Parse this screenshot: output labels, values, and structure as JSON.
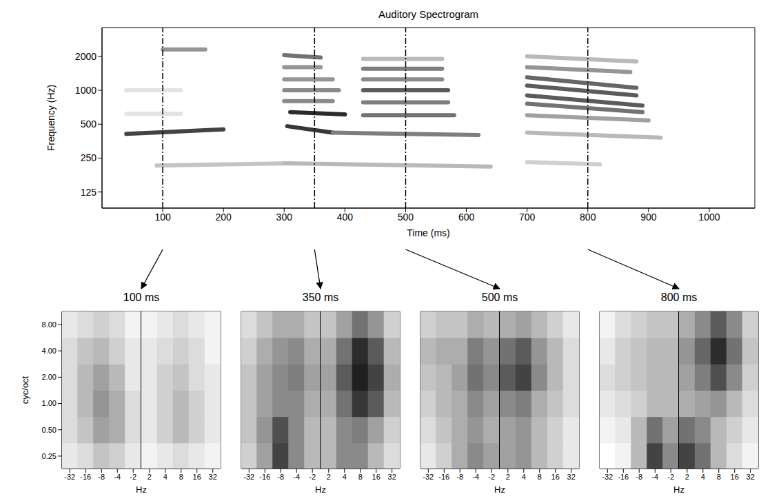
{
  "chart_data": [
    {
      "type": "heatmap",
      "title": "Auditory Spectrogram",
      "xlabel": "Time (ms)",
      "ylabel": "Frequency (Hz)",
      "xlim": [
        0,
        1075
      ],
      "xticks": [
        100,
        200,
        300,
        400,
        500,
        600,
        700,
        800,
        900,
        1000
      ],
      "ylim": [
        90,
        3600
      ],
      "yticks": [
        125,
        250,
        500,
        1000,
        2000
      ],
      "log": "y",
      "markers": [
        100,
        350,
        500,
        800
      ],
      "bands": [
        {
          "t": [
            40,
            200
          ],
          "f": [
            410,
            450
          ],
          "level": 0.8
        },
        {
          "t": [
            100,
            170
          ],
          "f": [
            2300,
            2300
          ],
          "level": 0.45
        },
        {
          "t": [
            90,
            310
          ],
          "f": [
            215,
            225
          ],
          "level": 0.25
        },
        {
          "t": [
            40,
            130
          ],
          "f": [
            1000,
            1000
          ],
          "level": 0.12
        },
        {
          "t": [
            40,
            130
          ],
          "f": [
            620,
            620
          ],
          "level": 0.12
        },
        {
          "t": [
            300,
            360
          ],
          "f": [
            2050,
            1950
          ],
          "level": 0.6
        },
        {
          "t": [
            300,
            360
          ],
          "f": [
            1600,
            1600
          ],
          "level": 0.45
        },
        {
          "t": [
            300,
            380
          ],
          "f": [
            1250,
            1250
          ],
          "level": 0.45
        },
        {
          "t": [
            300,
            390
          ],
          "f": [
            1000,
            1000
          ],
          "level": 0.5
        },
        {
          "t": [
            300,
            380
          ],
          "f": [
            800,
            800
          ],
          "level": 0.5
        },
        {
          "t": [
            310,
            400
          ],
          "f": [
            640,
            610
          ],
          "level": 0.9
        },
        {
          "t": [
            305,
            380
          ],
          "f": [
            480,
            420
          ],
          "level": 0.85
        },
        {
          "t": [
            380,
            620
          ],
          "f": [
            420,
            400
          ],
          "level": 0.55
        },
        {
          "t": [
            300,
            640
          ],
          "f": [
            225,
            210
          ],
          "level": 0.3
        },
        {
          "t": [
            430,
            560
          ],
          "f": [
            1900,
            1900
          ],
          "level": 0.3
        },
        {
          "t": [
            430,
            560
          ],
          "f": [
            1550,
            1550
          ],
          "level": 0.55
        },
        {
          "t": [
            430,
            560
          ],
          "f": [
            1250,
            1250
          ],
          "level": 0.5
        },
        {
          "t": [
            430,
            570
          ],
          "f": [
            1000,
            1000
          ],
          "level": 0.7
        },
        {
          "t": [
            430,
            570
          ],
          "f": [
            780,
            780
          ],
          "level": 0.55
        },
        {
          "t": [
            430,
            580
          ],
          "f": [
            600,
            600
          ],
          "level": 0.6
        },
        {
          "t": [
            700,
            880
          ],
          "f": [
            2000,
            1800
          ],
          "level": 0.3
        },
        {
          "t": [
            700,
            870
          ],
          "f": [
            1600,
            1450
          ],
          "level": 0.45
        },
        {
          "t": [
            700,
            880
          ],
          "f": [
            1300,
            1050
          ],
          "level": 0.65
        },
        {
          "t": [
            700,
            880
          ],
          "f": [
            1100,
            900
          ],
          "level": 0.7
        },
        {
          "t": [
            700,
            890
          ],
          "f": [
            900,
            730
          ],
          "level": 0.7
        },
        {
          "t": [
            700,
            890
          ],
          "f": [
            760,
            640
          ],
          "level": 0.6
        },
        {
          "t": [
            700,
            900
          ],
          "f": [
            600,
            540
          ],
          "level": 0.4
        },
        {
          "t": [
            700,
            920
          ],
          "f": [
            420,
            380
          ],
          "level": 0.3
        },
        {
          "t": [
            700,
            820
          ],
          "f": [
            230,
            220
          ],
          "level": 0.2
        }
      ]
    },
    {
      "type": "heatmap",
      "title": "100 ms",
      "xlabel": "Hz",
      "ylabel": "cyc/oct",
      "log": true,
      "xlim": [
        -45,
        45
      ],
      "x_break": [
        -1.4,
        1.4
      ],
      "xticks": [
        -32,
        -16,
        -8,
        -4,
        -2,
        2,
        4,
        8,
        16,
        32
      ],
      "ylim": [
        0.18,
        11.3
      ],
      "yticks": [
        0.25,
        {
          "value": 0.5,
          "label": "0.50"
        },
        {
          "value": 1,
          "label": "1.00"
        },
        {
          "value": 2,
          "label": "2.00"
        },
        {
          "value": 4,
          "label": "4.00"
        },
        {
          "value": 8,
          "label": "8.00"
        }
      ],
      "x": [
        -32,
        -16,
        -8,
        -4,
        -2,
        2,
        4,
        8,
        16,
        32
      ],
      "y": [
        0.25,
        0.5,
        1,
        2,
        4,
        8
      ],
      "z": [
        [
          0.1,
          0.15,
          0.25,
          0.2,
          0.1,
          0.05,
          0.1,
          0.15,
          0.1,
          0.05
        ],
        [
          0.15,
          0.25,
          0.4,
          0.35,
          0.15,
          0.1,
          0.2,
          0.3,
          0.2,
          0.1
        ],
        [
          0.15,
          0.3,
          0.45,
          0.35,
          0.15,
          0.1,
          0.2,
          0.3,
          0.2,
          0.1
        ],
        [
          0.15,
          0.3,
          0.4,
          0.3,
          0.1,
          0.1,
          0.2,
          0.25,
          0.15,
          0.1
        ],
        [
          0.15,
          0.25,
          0.3,
          0.2,
          0.1,
          0.1,
          0.15,
          0.2,
          0.15,
          0.05
        ],
        [
          0.1,
          0.15,
          0.2,
          0.15,
          0.05,
          0.05,
          0.1,
          0.15,
          0.1,
          0.05
        ]
      ]
    },
    {
      "type": "heatmap",
      "title": "350 ms",
      "xlabel": "Hz",
      "log": true,
      "tick_labels": "x",
      "xlim": [
        -45,
        45
      ],
      "x_break": [
        -1.4,
        1.4
      ],
      "xticks": [
        -32,
        -16,
        -8,
        -4,
        -2,
        2,
        4,
        8,
        16,
        32
      ],
      "ylim": [
        0.18,
        11.3
      ],
      "yticks": [
        0.25,
        {
          "value": 0.5,
          "label": "0.50"
        },
        {
          "value": 1,
          "label": "1.00"
        },
        {
          "value": 2,
          "label": "2.00"
        },
        {
          "value": 4,
          "label": "4.00"
        },
        {
          "value": 8,
          "label": "8.00"
        }
      ],
      "x": [
        -32,
        -16,
        -8,
        -4,
        -2,
        2,
        4,
        8,
        16,
        32
      ],
      "y": [
        0.25,
        0.5,
        1,
        2,
        4,
        8
      ],
      "z": [
        [
          0.2,
          0.4,
          0.8,
          0.5,
          0.3,
          0.3,
          0.5,
          0.5,
          0.3,
          0.15
        ],
        [
          0.25,
          0.45,
          0.75,
          0.5,
          0.3,
          0.3,
          0.5,
          0.55,
          0.4,
          0.2
        ],
        [
          0.25,
          0.4,
          0.5,
          0.5,
          0.35,
          0.35,
          0.6,
          0.85,
          0.7,
          0.3
        ],
        [
          0.25,
          0.4,
          0.5,
          0.55,
          0.4,
          0.4,
          0.7,
          0.95,
          0.8,
          0.35
        ],
        [
          0.2,
          0.35,
          0.45,
          0.5,
          0.35,
          0.35,
          0.6,
          0.9,
          0.7,
          0.3
        ],
        [
          0.15,
          0.25,
          0.35,
          0.35,
          0.25,
          0.25,
          0.4,
          0.6,
          0.45,
          0.2
        ]
      ]
    },
    {
      "type": "heatmap",
      "title": "500 ms",
      "xlabel": "Hz",
      "log": true,
      "tick_labels": "x",
      "xlim": [
        -45,
        45
      ],
      "x_break": [
        -1.4,
        1.4
      ],
      "xticks": [
        -32,
        -16,
        -8,
        -4,
        -2,
        2,
        4,
        8,
        16,
        32
      ],
      "ylim": [
        0.18,
        11.3
      ],
      "yticks": [
        0.25,
        {
          "value": 0.5,
          "label": "0.50"
        },
        {
          "value": 1,
          "label": "1.00"
        },
        {
          "value": 2,
          "label": "2.00"
        },
        {
          "value": 4,
          "label": "4.00"
        },
        {
          "value": 8,
          "label": "8.00"
        }
      ],
      "x": [
        -32,
        -16,
        -8,
        -4,
        -2,
        2,
        4,
        8,
        16,
        32
      ],
      "y": [
        0.25,
        0.5,
        1,
        2,
        4,
        8
      ],
      "z": [
        [
          0.1,
          0.2,
          0.35,
          0.5,
          0.4,
          0.4,
          0.45,
          0.3,
          0.2,
          0.1
        ],
        [
          0.15,
          0.25,
          0.35,
          0.45,
          0.35,
          0.4,
          0.45,
          0.3,
          0.2,
          0.1
        ],
        [
          0.2,
          0.3,
          0.35,
          0.5,
          0.4,
          0.5,
          0.55,
          0.35,
          0.25,
          0.15
        ],
        [
          0.25,
          0.3,
          0.4,
          0.6,
          0.5,
          0.7,
          0.8,
          0.5,
          0.3,
          0.15
        ],
        [
          0.3,
          0.35,
          0.35,
          0.55,
          0.45,
          0.6,
          0.7,
          0.45,
          0.3,
          0.15
        ],
        [
          0.2,
          0.25,
          0.25,
          0.35,
          0.3,
          0.35,
          0.4,
          0.3,
          0.2,
          0.1
        ]
      ]
    },
    {
      "type": "heatmap",
      "title": "800 ms",
      "xlabel": "Hz",
      "log": true,
      "tick_labels": "x",
      "xlim": [
        -45,
        45
      ],
      "x_break": [
        -1.4,
        1.4
      ],
      "xticks": [
        -32,
        -16,
        -8,
        -4,
        -2,
        2,
        4,
        8,
        16,
        32
      ],
      "ylim": [
        0.18,
        11.3
      ],
      "yticks": [
        0.25,
        {
          "value": 0.5,
          "label": "0.50"
        },
        {
          "value": 1,
          "label": "1.00"
        },
        {
          "value": 2,
          "label": "2.00"
        },
        {
          "value": 4,
          "label": "4.00"
        },
        {
          "value": 8,
          "label": "8.00"
        }
      ],
      "x": [
        -32,
        -16,
        -8,
        -4,
        -2,
        2,
        4,
        8,
        16,
        32
      ],
      "y": [
        0.25,
        0.5,
        1,
        2,
        4,
        8
      ],
      "z": [
        [
          0.0,
          0.05,
          0.3,
          0.8,
          0.5,
          0.8,
          0.6,
          0.3,
          0.15,
          0.05
        ],
        [
          0.05,
          0.1,
          0.3,
          0.6,
          0.4,
          0.6,
          0.5,
          0.3,
          0.2,
          0.1
        ],
        [
          0.1,
          0.15,
          0.2,
          0.3,
          0.3,
          0.35,
          0.4,
          0.45,
          0.3,
          0.15
        ],
        [
          0.15,
          0.2,
          0.25,
          0.3,
          0.3,
          0.4,
          0.55,
          0.75,
          0.5,
          0.2
        ],
        [
          0.1,
          0.2,
          0.25,
          0.3,
          0.3,
          0.45,
          0.65,
          0.9,
          0.6,
          0.25
        ],
        [
          0.05,
          0.15,
          0.2,
          0.25,
          0.25,
          0.35,
          0.5,
          0.7,
          0.5,
          0.2
        ]
      ]
    }
  ]
}
